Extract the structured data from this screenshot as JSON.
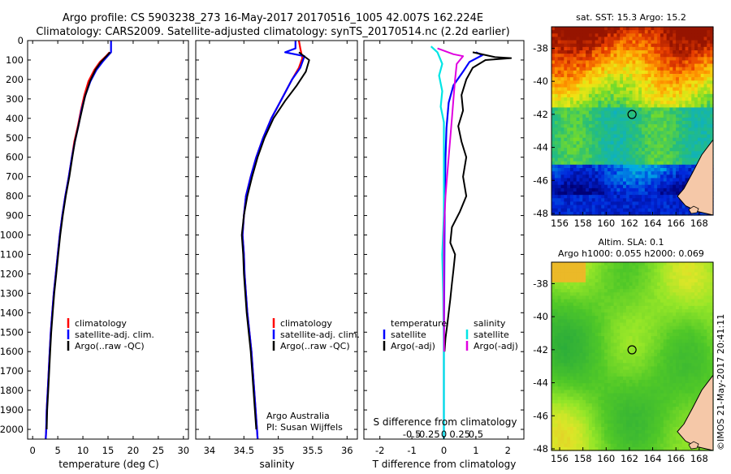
{
  "header": {
    "line1": "Argo profile: CS 5903238_273 16-May-2017 20170516_1005 42.007S 162.224E",
    "line2": "Climatology: CARS2009. Satellite-adjusted climatology: synTS_20170514.nc (2.2d earlier)"
  },
  "colors": {
    "climatology": "#ff0000",
    "satellite": "#0000ff",
    "argo": "#000000",
    "sal_satellite": "#00e5e5",
    "sal_argo": "#e000e0",
    "land": "#f5c8a8"
  },
  "chart_data": [
    {
      "type": "line",
      "id": "temperature",
      "xlabel": "temperature (deg C)",
      "xlim": [
        -1,
        31
      ],
      "xticks": [
        0,
        5,
        10,
        15,
        20,
        25,
        30
      ],
      "ylim": [
        2050,
        0
      ],
      "yticks": [
        0,
        100,
        200,
        300,
        400,
        500,
        600,
        700,
        800,
        900,
        1000,
        1100,
        1200,
        1300,
        1400,
        1500,
        1600,
        1700,
        1800,
        1900,
        2000
      ],
      "legend": [
        "climatology",
        "satellite-adj. clim.",
        "Argo(..raw -QC)"
      ],
      "series": [
        {
          "name": "climatology",
          "points": [
            [
              15.3,
              60
            ],
            [
              14.6,
              80
            ],
            [
              13.4,
              110
            ],
            [
              12.3,
              150
            ],
            [
              11.1,
              210
            ],
            [
              10.3,
              280
            ],
            [
              9.6,
              360
            ],
            [
              9,
              440
            ],
            [
              8.3,
              520
            ],
            [
              7.8,
              600
            ],
            [
              7.2,
              700
            ],
            [
              6.5,
              800
            ],
            [
              5.9,
              900
            ],
            [
              5.4,
              1000
            ],
            [
              5,
              1100
            ],
            [
              4.6,
              1200
            ],
            [
              4.2,
              1300
            ],
            [
              3.9,
              1400
            ],
            [
              3.6,
              1500
            ],
            [
              3.4,
              1600
            ],
            [
              3.2,
              1700
            ],
            [
              3,
              1800
            ],
            [
              2.8,
              1900
            ],
            [
              2.7,
              2000
            ],
            [
              2.6,
              2050
            ]
          ]
        },
        {
          "name": "satellite-adj. clim.",
          "points": [
            [
              15.6,
              0
            ],
            [
              15.6,
              60
            ],
            [
              14.9,
              80
            ],
            [
              13.9,
              110
            ],
            [
              12.7,
              150
            ],
            [
              11.5,
              210
            ],
            [
              10.5,
              280
            ],
            [
              9.7,
              360
            ],
            [
              9.1,
              440
            ],
            [
              8.4,
              520
            ],
            [
              7.8,
              600
            ],
            [
              7.2,
              700
            ],
            [
              6.5,
              800
            ],
            [
              5.9,
              900
            ],
            [
              5.4,
              1000
            ],
            [
              5,
              1100
            ],
            [
              4.6,
              1200
            ],
            [
              4.2,
              1300
            ],
            [
              3.9,
              1400
            ],
            [
              3.6,
              1500
            ],
            [
              3.4,
              1600
            ],
            [
              3.2,
              1700
            ],
            [
              3,
              1800
            ],
            [
              2.8,
              1900
            ],
            [
              2.7,
              2000
            ],
            [
              2.6,
              2050
            ]
          ]
        },
        {
          "name": "Argo(..raw -QC)",
          "points": [
            [
              15.4,
              60
            ],
            [
              14.7,
              80
            ],
            [
              13.6,
              110
            ],
            [
              12.5,
              150
            ],
            [
              11.4,
              210
            ],
            [
              10.4,
              290
            ],
            [
              9.8,
              360
            ],
            [
              9.1,
              440
            ],
            [
              8.4,
              520
            ],
            [
              7.9,
              600
            ],
            [
              7.3,
              700
            ],
            [
              6.6,
              800
            ],
            [
              6,
              900
            ],
            [
              5.5,
              1000
            ],
            [
              5.1,
              1100
            ],
            [
              4.7,
              1200
            ],
            [
              4.3,
              1300
            ],
            [
              4,
              1400
            ],
            [
              3.7,
              1500
            ],
            [
              3.5,
              1600
            ],
            [
              3.3,
              1700
            ],
            [
              3.1,
              1800
            ],
            [
              2.9,
              1900
            ],
            [
              2.8,
              2000
            ]
          ]
        }
      ]
    },
    {
      "type": "line",
      "id": "salinity",
      "xlabel": "salinity",
      "xlim": [
        33.8,
        36.15
      ],
      "xticks": [
        34,
        34.5,
        35,
        35.5,
        36
      ],
      "ylim": [
        2050,
        0
      ],
      "legend": [
        "climatology",
        "satellite-adj. clim.",
        "Argo(..raw -QC)"
      ],
      "annotation": [
        "Argo Australia",
        "PI: Susan Wijffels"
      ],
      "series": [
        {
          "name": "climatology",
          "points": [
            [
              35.3,
              0
            ],
            [
              35.32,
              40
            ],
            [
              35.35,
              90
            ],
            [
              35.3,
              140
            ],
            [
              35.2,
              200
            ],
            [
              35.05,
              300
            ],
            [
              34.9,
              400
            ],
            [
              34.78,
              500
            ],
            [
              34.68,
              600
            ],
            [
              34.6,
              700
            ],
            [
              34.53,
              800
            ],
            [
              34.5,
              900
            ],
            [
              34.48,
              1000
            ],
            [
              34.5,
              1100
            ],
            [
              34.51,
              1200
            ],
            [
              34.53,
              1300
            ],
            [
              34.55,
              1400
            ],
            [
              34.58,
              1500
            ],
            [
              34.61,
              1600
            ],
            [
              34.63,
              1700
            ],
            [
              34.65,
              1800
            ],
            [
              34.67,
              1900
            ],
            [
              34.69,
              2000
            ],
            [
              34.7,
              2050
            ]
          ]
        },
        {
          "name": "satellite-adj. clim.",
          "points": [
            [
              35.25,
              0
            ],
            [
              35.25,
              40
            ],
            [
              35.1,
              60
            ],
            [
              35.38,
              80
            ],
            [
              35.32,
              140
            ],
            [
              35.2,
              200
            ],
            [
              35.05,
              300
            ],
            [
              34.9,
              400
            ],
            [
              34.78,
              500
            ],
            [
              34.68,
              600
            ],
            [
              34.6,
              700
            ],
            [
              34.53,
              800
            ],
            [
              34.5,
              900
            ],
            [
              34.48,
              1000
            ],
            [
              34.5,
              1100
            ],
            [
              34.51,
              1200
            ],
            [
              34.53,
              1300
            ],
            [
              34.55,
              1400
            ],
            [
              34.58,
              1500
            ],
            [
              34.61,
              1600
            ],
            [
              34.63,
              1700
            ],
            [
              34.65,
              1800
            ],
            [
              34.67,
              1900
            ],
            [
              34.69,
              2000
            ],
            [
              34.7,
              2050
            ]
          ]
        },
        {
          "name": "Argo(..raw -QC)",
          "points": [
            [
              35.3,
              60
            ],
            [
              35.45,
              100
            ],
            [
              35.4,
              160
            ],
            [
              35.27,
              230
            ],
            [
              35.1,
              310
            ],
            [
              34.93,
              400
            ],
            [
              34.8,
              500
            ],
            [
              34.7,
              600
            ],
            [
              34.62,
              700
            ],
            [
              34.55,
              800
            ],
            [
              34.5,
              900
            ],
            [
              34.47,
              1000
            ],
            [
              34.49,
              1100
            ],
            [
              34.5,
              1200
            ],
            [
              34.52,
              1300
            ],
            [
              34.54,
              1400
            ],
            [
              34.57,
              1500
            ],
            [
              34.6,
              1600
            ],
            [
              34.62,
              1700
            ],
            [
              34.64,
              1800
            ],
            [
              34.66,
              1900
            ],
            [
              34.68,
              2000
            ]
          ]
        }
      ]
    },
    {
      "type": "line",
      "id": "difference",
      "xlabel": "T difference from climatology",
      "xlabel_top": "S difference from climatology",
      "xlim": [
        -2.5,
        2.5
      ],
      "xticks_T": [
        -2,
        -1,
        0,
        1,
        2
      ],
      "xticks_S": [
        "-0.5",
        "-0.25",
        "0",
        "0.25",
        "0.5"
      ],
      "ylim": [
        2050,
        0
      ],
      "legend_temperature": {
        "title": "temperature",
        "items": [
          "satellite",
          "Argo(-adj)"
        ]
      },
      "legend_salinity": {
        "title": "salinity",
        "items": [
          "satellite",
          "Argo(-adj)"
        ]
      },
      "series": [
        {
          "name": "temperature satellite",
          "points": [
            [
              1,
              60
            ],
            [
              1.2,
              75
            ],
            [
              0.8,
              110
            ],
            [
              0.6,
              160
            ],
            [
              0.3,
              230
            ],
            [
              0.15,
              320
            ],
            [
              0.08,
              450
            ],
            [
              0.05,
              600
            ],
            [
              0.03,
              800
            ],
            [
              0.02,
              1000
            ],
            [
              0.01,
              1300
            ],
            [
              0,
              1600
            ],
            [
              0,
              2050
            ]
          ]
        },
        {
          "name": "temperature Argo(-adj)",
          "points": [
            [
              0.9,
              60
            ],
            [
              1.6,
              85
            ],
            [
              2.1,
              90
            ],
            [
              1.3,
              100
            ],
            [
              0.9,
              140
            ],
            [
              0.7,
              200
            ],
            [
              0.55,
              280
            ],
            [
              0.6,
              360
            ],
            [
              0.45,
              440
            ],
            [
              0.55,
              520
            ],
            [
              0.7,
              600
            ],
            [
              0.6,
              700
            ],
            [
              0.7,
              800
            ],
            [
              0.5,
              880
            ],
            [
              0.25,
              960
            ],
            [
              0.2,
              1040
            ],
            [
              0.35,
              1100
            ],
            [
              0.3,
              1180
            ],
            [
              0.25,
              1250
            ],
            [
              0.2,
              1330
            ],
            [
              0.15,
              1400
            ],
            [
              0.1,
              1470
            ],
            [
              0.05,
              1530
            ],
            [
              0.02,
              1600
            ]
          ]
        },
        {
          "name": "salinity satellite",
          "points": [
            [
              -0.4,
              30
            ],
            [
              -0.2,
              60
            ],
            [
              -0.05,
              120
            ],
            [
              -0.15,
              180
            ],
            [
              -0.05,
              260
            ],
            [
              -0.1,
              340
            ],
            [
              0,
              420
            ],
            [
              0,
              520
            ],
            [
              0,
              700
            ],
            [
              0,
              900
            ],
            [
              -0.05,
              1100
            ],
            [
              -0.02,
              1300
            ],
            [
              0,
              1600
            ],
            [
              0,
              2050
            ]
          ]
        },
        {
          "name": "salinity Argo(-adj)",
          "points": [
            [
              -0.2,
              40
            ],
            [
              0.3,
              70
            ],
            [
              0.6,
              80
            ],
            [
              0.4,
              120
            ],
            [
              0.35,
              200
            ],
            [
              0.3,
              300
            ],
            [
              0.25,
              400
            ],
            [
              0.2,
              500
            ],
            [
              0.15,
              600
            ],
            [
              0.1,
              700
            ],
            [
              0.05,
              800
            ],
            [
              0.02,
              900
            ],
            [
              0,
              1000
            ],
            [
              0,
              1200
            ],
            [
              0,
              1400
            ],
            [
              0.01,
              1600
            ]
          ]
        }
      ]
    }
  ],
  "sst_map": {
    "title": "sat. SST: 15.3 Argo: 15.2",
    "xticks": [
      "156",
      "158",
      "160",
      "162",
      "164",
      "166",
      "168"
    ],
    "yticks": [
      "-38",
      "-40",
      "-42",
      "-44",
      "-46",
      "-48"
    ]
  },
  "sla_map": {
    "title_line1": "Altim. SLA: 0.1",
    "title_line2": "Argo h1000: 0.055 h2000: 0.069",
    "xticks": [
      "156",
      "158",
      "160",
      "162",
      "164",
      "166",
      "168"
    ],
    "yticks": [
      "-38",
      "-40",
      "-42",
      "-44",
      "-46",
      "-48"
    ]
  },
  "footer_vertical": "©IMOS 21-May-2017 20:41:11"
}
